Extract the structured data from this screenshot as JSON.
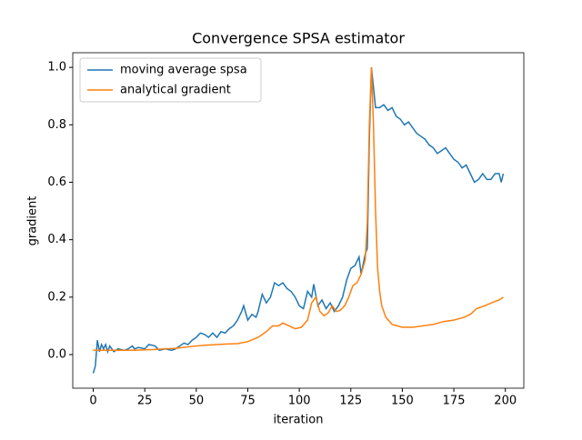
{
  "chart_data": {
    "type": "line",
    "title": "Convergence SPSA estimator",
    "xlabel": "iteration",
    "ylabel": "gradient",
    "xlim": [
      -9.95,
      208.95
    ],
    "ylim": [
      -0.117,
      1.051
    ],
    "xticks": [
      0,
      25,
      50,
      75,
      100,
      125,
      150,
      175,
      200
    ],
    "yticks": [
      {
        "value": 0,
        "label": "0.0"
      },
      {
        "value": 0.2,
        "label": "0.2"
      },
      {
        "value": 0.4,
        "label": "0.4"
      },
      {
        "value": 0.6,
        "label": "0.6"
      },
      {
        "value": 0.8,
        "label": "0.8"
      },
      {
        "value": 1,
        "label": "1.0"
      }
    ],
    "legend": "upper left",
    "series": [
      {
        "name": "moving average spsa",
        "color": "#1f77b4",
        "x": [
          0,
          1,
          2,
          3,
          4,
          5,
          6,
          7,
          8,
          10,
          12,
          15,
          17,
          19,
          20,
          22,
          25,
          27,
          30,
          32,
          35,
          38,
          40,
          42,
          44,
          46,
          48,
          50,
          52,
          54,
          56,
          58,
          60,
          62,
          64,
          66,
          68,
          70,
          72,
          73,
          75,
          77,
          79,
          80,
          82,
          84,
          86,
          88,
          90,
          92,
          94,
          96,
          98,
          100,
          102,
          104,
          106,
          107,
          109,
          111,
          113,
          115,
          117,
          119,
          121,
          123,
          125,
          127,
          129,
          130,
          132,
          133,
          134,
          135,
          136,
          137,
          139,
          141,
          143,
          145,
          147,
          149,
          151,
          153,
          155,
          157,
          159,
          161,
          163,
          165,
          167,
          169,
          171,
          173,
          175,
          177,
          179,
          181,
          183,
          185,
          187,
          189,
          191,
          193,
          195,
          197,
          198,
          199
        ],
        "values": [
          -0.065,
          -0.04,
          0.05,
          0.01,
          0.035,
          0.02,
          0.035,
          0.01,
          0.03,
          0.01,
          0.02,
          0.015,
          0.02,
          0.03,
          0.02,
          0.025,
          0.02,
          0.035,
          0.03,
          0.015,
          0.02,
          0.015,
          0.02,
          0.03,
          0.04,
          0.035,
          0.05,
          0.06,
          0.075,
          0.07,
          0.06,
          0.075,
          0.06,
          0.08,
          0.075,
          0.09,
          0.1,
          0.12,
          0.15,
          0.17,
          0.12,
          0.14,
          0.13,
          0.15,
          0.21,
          0.18,
          0.2,
          0.25,
          0.24,
          0.25,
          0.23,
          0.22,
          0.2,
          0.17,
          0.16,
          0.22,
          0.2,
          0.245,
          0.17,
          0.19,
          0.16,
          0.18,
          0.15,
          0.17,
          0.2,
          0.26,
          0.3,
          0.31,
          0.34,
          0.28,
          0.35,
          0.37,
          0.75,
          1.0,
          0.93,
          0.86,
          0.86,
          0.87,
          0.85,
          0.86,
          0.83,
          0.82,
          0.8,
          0.81,
          0.79,
          0.77,
          0.76,
          0.75,
          0.73,
          0.72,
          0.7,
          0.71,
          0.72,
          0.7,
          0.68,
          0.67,
          0.65,
          0.66,
          0.63,
          0.6,
          0.61,
          0.63,
          0.61,
          0.61,
          0.63,
          0.63,
          0.6,
          0.63
        ]
      },
      {
        "name": "analytical gradient",
        "color": "#ff7f0e",
        "x": [
          0,
          10,
          20,
          30,
          40,
          50,
          55,
          60,
          65,
          70,
          75,
          80,
          84,
          87,
          90,
          92,
          95,
          98,
          101,
          104,
          106,
          108,
          110,
          112,
          114,
          116,
          118,
          120,
          122,
          124,
          126,
          128,
          130,
          132,
          133,
          134,
          135,
          136,
          137,
          138,
          139,
          140,
          142,
          145,
          150,
          155,
          160,
          165,
          170,
          175,
          180,
          183,
          186,
          190,
          195,
          197,
          199
        ],
        "values": [
          0.015,
          0.015,
          0.015,
          0.018,
          0.022,
          0.03,
          0.033,
          0.035,
          0.037,
          0.038,
          0.045,
          0.06,
          0.08,
          0.1,
          0.1,
          0.11,
          0.1,
          0.09,
          0.095,
          0.12,
          0.18,
          0.2,
          0.15,
          0.135,
          0.145,
          0.17,
          0.15,
          0.155,
          0.17,
          0.2,
          0.24,
          0.25,
          0.28,
          0.33,
          0.46,
          0.8,
          1.0,
          0.8,
          0.5,
          0.3,
          0.22,
          0.17,
          0.13,
          0.105,
          0.095,
          0.095,
          0.1,
          0.105,
          0.115,
          0.12,
          0.13,
          0.14,
          0.16,
          0.17,
          0.185,
          0.19,
          0.2
        ]
      }
    ]
  }
}
